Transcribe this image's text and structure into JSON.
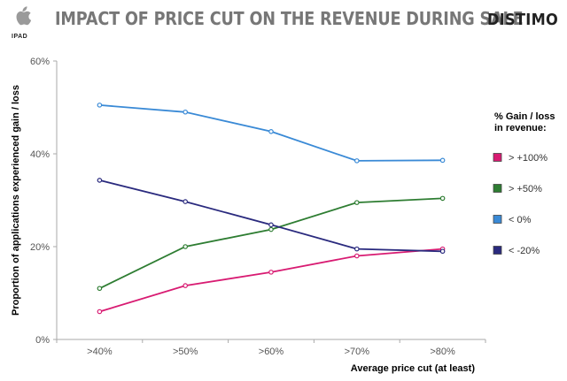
{
  "header": {
    "platform": "IPAD",
    "title": "IMPACT OF PRICE CUT ON THE REVENUE DURING SALE",
    "brand": "DISTIMO",
    "logo_icon": "apple-logo-icon"
  },
  "chart_data": {
    "type": "line",
    "title": "IMPACT OF PRICE CUT ON THE REVENUE DURING SALE",
    "xlabel": "Average price cut (at least)",
    "ylabel": "Proportion of applications experienced gain / loss",
    "categories": [
      ">40%",
      ">50%",
      ">60%",
      ">70%",
      ">80%"
    ],
    "y_ticks": [
      "0%",
      "20%",
      "40%",
      "60%"
    ],
    "ylim": [
      0,
      60
    ],
    "grid": false,
    "legend_position": "right",
    "legend_title": [
      "% Gain / loss",
      "in revenue:"
    ],
    "series": [
      {
        "name": "> +100%",
        "color": "#d81b72",
        "values": [
          6,
          11.6,
          14.5,
          18,
          19.5
        ]
      },
      {
        "name": "> +50%",
        "color": "#2e7d32",
        "values": [
          11,
          20,
          23.7,
          29.5,
          30.4
        ]
      },
      {
        "name": "< 0%",
        "color": "#3a8ad6",
        "values": [
          50.5,
          49,
          44.8,
          38.5,
          38.6
        ]
      },
      {
        "name": "< -20%",
        "color": "#2a2a7e",
        "values": [
          34.3,
          29.7,
          24.7,
          19.5,
          19
        ]
      }
    ]
  }
}
